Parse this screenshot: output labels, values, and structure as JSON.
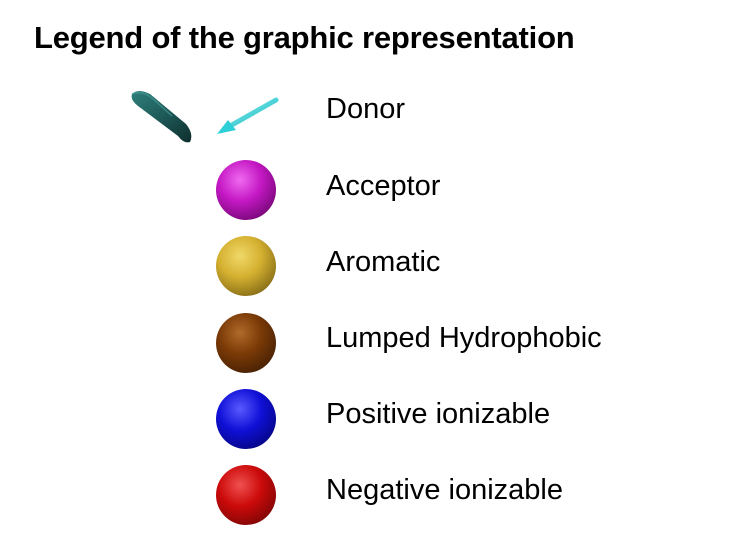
{
  "title": "Legend of the graphic representation",
  "legend": [
    {
      "label": "Donor",
      "icon": "donor-arrow-icon",
      "color": "#2ecfd6",
      "cone_color": "#1e5a58"
    },
    {
      "label": "Acceptor",
      "icon": "sphere-icon",
      "color": "#c418c4"
    },
    {
      "label": "Aromatic",
      "icon": "sphere-icon",
      "color": "#d4b030"
    },
    {
      "label": "Lumped Hydrophobic",
      "icon": "sphere-icon",
      "color": "#7a3a06"
    },
    {
      "label": "Positive ionizable",
      "icon": "sphere-icon",
      "color": "#1010d8"
    },
    {
      "label": "Negative ionizable",
      "icon": "sphere-icon",
      "color": "#cc0a0a"
    }
  ]
}
